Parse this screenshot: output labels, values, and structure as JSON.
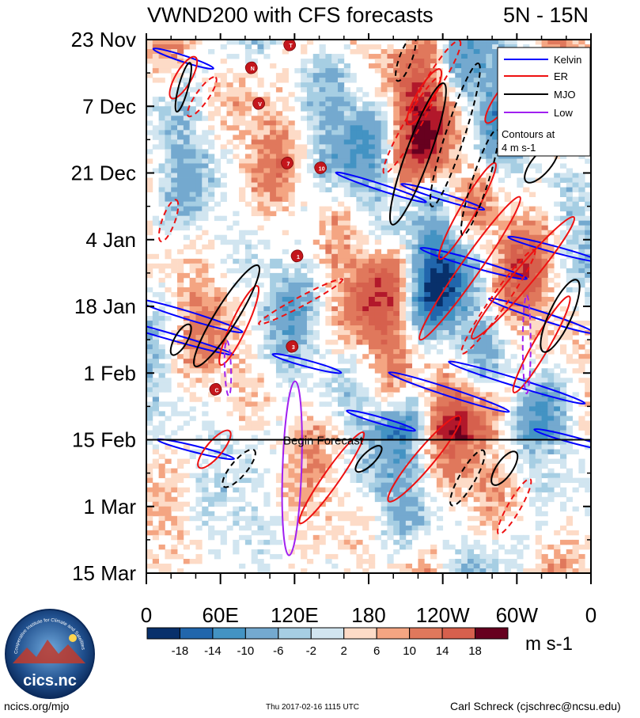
{
  "chart_data": {
    "type": "heatmap",
    "title": "VWND200 with CFS forecasts",
    "region": "5N - 15N",
    "x_axis": {
      "ticks": [
        "0",
        "60E",
        "120E",
        "180",
        "120W",
        "60W",
        "0"
      ],
      "longitudes": [
        0,
        60,
        120,
        180,
        240,
        300,
        360
      ],
      "range": [
        0,
        360
      ]
    },
    "y_axis": {
      "ticks": [
        "23 Nov",
        "7 Dec",
        "21 Dec",
        "4 Jan",
        "18 Jan",
        "1 Feb",
        "15 Feb",
        "1 Mar",
        "15 Mar"
      ],
      "day_offsets": [
        0,
        14,
        28,
        42,
        56,
        70,
        84,
        98,
        112
      ],
      "range_days": [
        0,
        112
      ]
    },
    "forecast_start": {
      "label": "Begin Forecast",
      "day": 84
    },
    "colorbar": {
      "unit": "m s-1",
      "labels": [
        "-18",
        "-14",
        "-10",
        "-6",
        "-2",
        "2",
        "6",
        "10",
        "14",
        "18"
      ],
      "colors": [
        "#08306b",
        "#2166ac",
        "#4393c3",
        "#74a9cf",
        "#a6cee3",
        "#d1e5f0",
        "#ffffff",
        "#fddbc7",
        "#f4a582",
        "#e0785c",
        "#d6604d",
        "#b2182b",
        "#67001f"
      ]
    },
    "legend": {
      "entries": [
        {
          "name": "Kelvin",
          "color": "#0000ff"
        },
        {
          "name": "ER",
          "color": "#ee1111"
        },
        {
          "name": "MJO",
          "color": "#000000"
        },
        {
          "name": "Low",
          "color": "#a020f0"
        }
      ],
      "note_line1": "Contours at",
      "note_line2": "4 m s-1"
    },
    "storms": [
      {
        "label": "T",
        "lon": 117,
        "day": 1.2
      },
      {
        "label": "N",
        "lon": 86,
        "day": 6
      },
      {
        "label": "V",
        "lon": 92,
        "day": 13.5
      },
      {
        "label": "7",
        "lon": 115,
        "day": 26
      },
      {
        "label": "10",
        "lon": 142,
        "day": 27
      },
      {
        "label": "1",
        "lon": 123,
        "day": 45.5
      },
      {
        "label": "3",
        "lon": 119,
        "day": 64.5
      },
      {
        "label": "C",
        "lon": 57,
        "day": 73.5
      }
    ]
  },
  "footer": {
    "website": "ncics.org/mjo",
    "timestamp": "Thu 2017-02-16 1115 UTC",
    "author": "Carl Schreck (cjschrec@ncsu.edu)",
    "logo_text": "cics.nc",
    "logo_ring_text": "Cooperative Institute for Climate and Satellites"
  }
}
